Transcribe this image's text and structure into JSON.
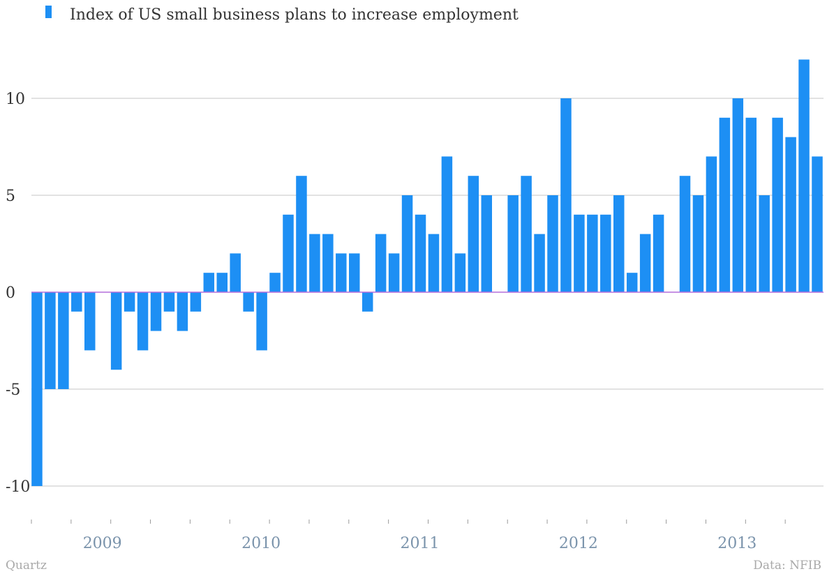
{
  "colors": {
    "bar": "#1d8ff4",
    "zero_line": "#b36fdc",
    "grid": "#c6c6c6",
    "tick_text": "#333333",
    "year_text": "#7a93ab",
    "footer_text": "#a9a9a9"
  },
  "footer": {
    "source_left": "Quartz",
    "source_right": "Data: NFIB"
  },
  "chart_data": {
    "type": "bar",
    "title": "",
    "xlabel": "",
    "ylabel": "",
    "legend_position": "top-left",
    "grid": true,
    "ylim": [
      -12,
      12.5
    ],
    "y_ticks": [
      -10,
      -5,
      0,
      5,
      10
    ],
    "y_tick_labels": [
      "-10",
      "-5",
      "0",
      "5",
      "10"
    ],
    "x_year_labels": [
      "2009",
      "2010",
      "2011",
      "2012",
      "2013"
    ],
    "series": [
      {
        "name": "Index of US small business plans to increase employment",
        "values": [
          -10,
          -5,
          -5,
          -1,
          -3,
          0,
          -4,
          -1,
          -3,
          -2,
          -1,
          -2,
          -1,
          1,
          1,
          2,
          -1,
          -3,
          1,
          4,
          6,
          3,
          3,
          2,
          2,
          -1,
          3,
          2,
          5,
          4,
          3,
          7,
          2,
          6,
          5,
          0,
          5,
          6,
          3,
          5,
          10,
          4,
          4,
          4,
          5,
          1,
          3,
          4,
          0,
          6,
          5,
          7,
          9,
          10,
          9,
          5,
          9,
          8,
          12,
          7
        ]
      }
    ]
  }
}
